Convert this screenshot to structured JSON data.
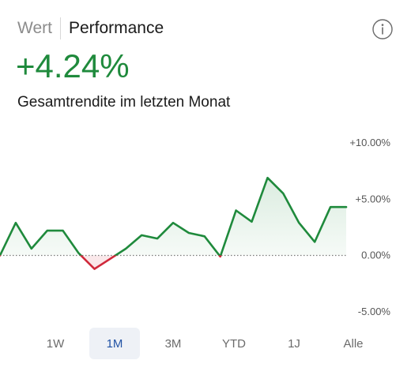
{
  "tabs": {
    "value_label": "Wert",
    "performance_label": "Performance",
    "active": "performance"
  },
  "headline": {
    "value": "+4.24%",
    "subtitle": "Gesamtrendite im letzten Monat"
  },
  "colors": {
    "positive": "#1f8a3c",
    "negative": "#d0293b",
    "selected_bg": "#eef1f6",
    "selected_text": "#2253a5"
  },
  "icons": {
    "info": "info-circle-icon"
  },
  "time_ranges": [
    {
      "label": "1W",
      "selected": false
    },
    {
      "label": "1M",
      "selected": true
    },
    {
      "label": "3M",
      "selected": false
    },
    {
      "label": "YTD",
      "selected": false
    },
    {
      "label": "1J",
      "selected": false
    },
    {
      "label": "Alle",
      "selected": false
    }
  ],
  "chart_data": {
    "type": "line",
    "y_unit": "%",
    "ylim": [
      -5,
      10
    ],
    "y_ticks": [
      "+10.00%",
      "+5.00%",
      "0.00%",
      "-5.00%"
    ],
    "y_tick_values": [
      10,
      5,
      0,
      -5
    ],
    "baseline": 0,
    "baseline_style": "dotted",
    "grid": false,
    "series": [
      {
        "values": [
          0.0,
          2.9,
          0.6,
          2.2,
          2.2,
          0.2,
          -1.2,
          -0.3,
          0.6,
          1.8,
          1.5,
          2.9,
          2.0,
          1.7,
          -0.1,
          4.0,
          3.0,
          6.9,
          5.5,
          2.9,
          1.2,
          4.3,
          4.3
        ]
      }
    ]
  }
}
